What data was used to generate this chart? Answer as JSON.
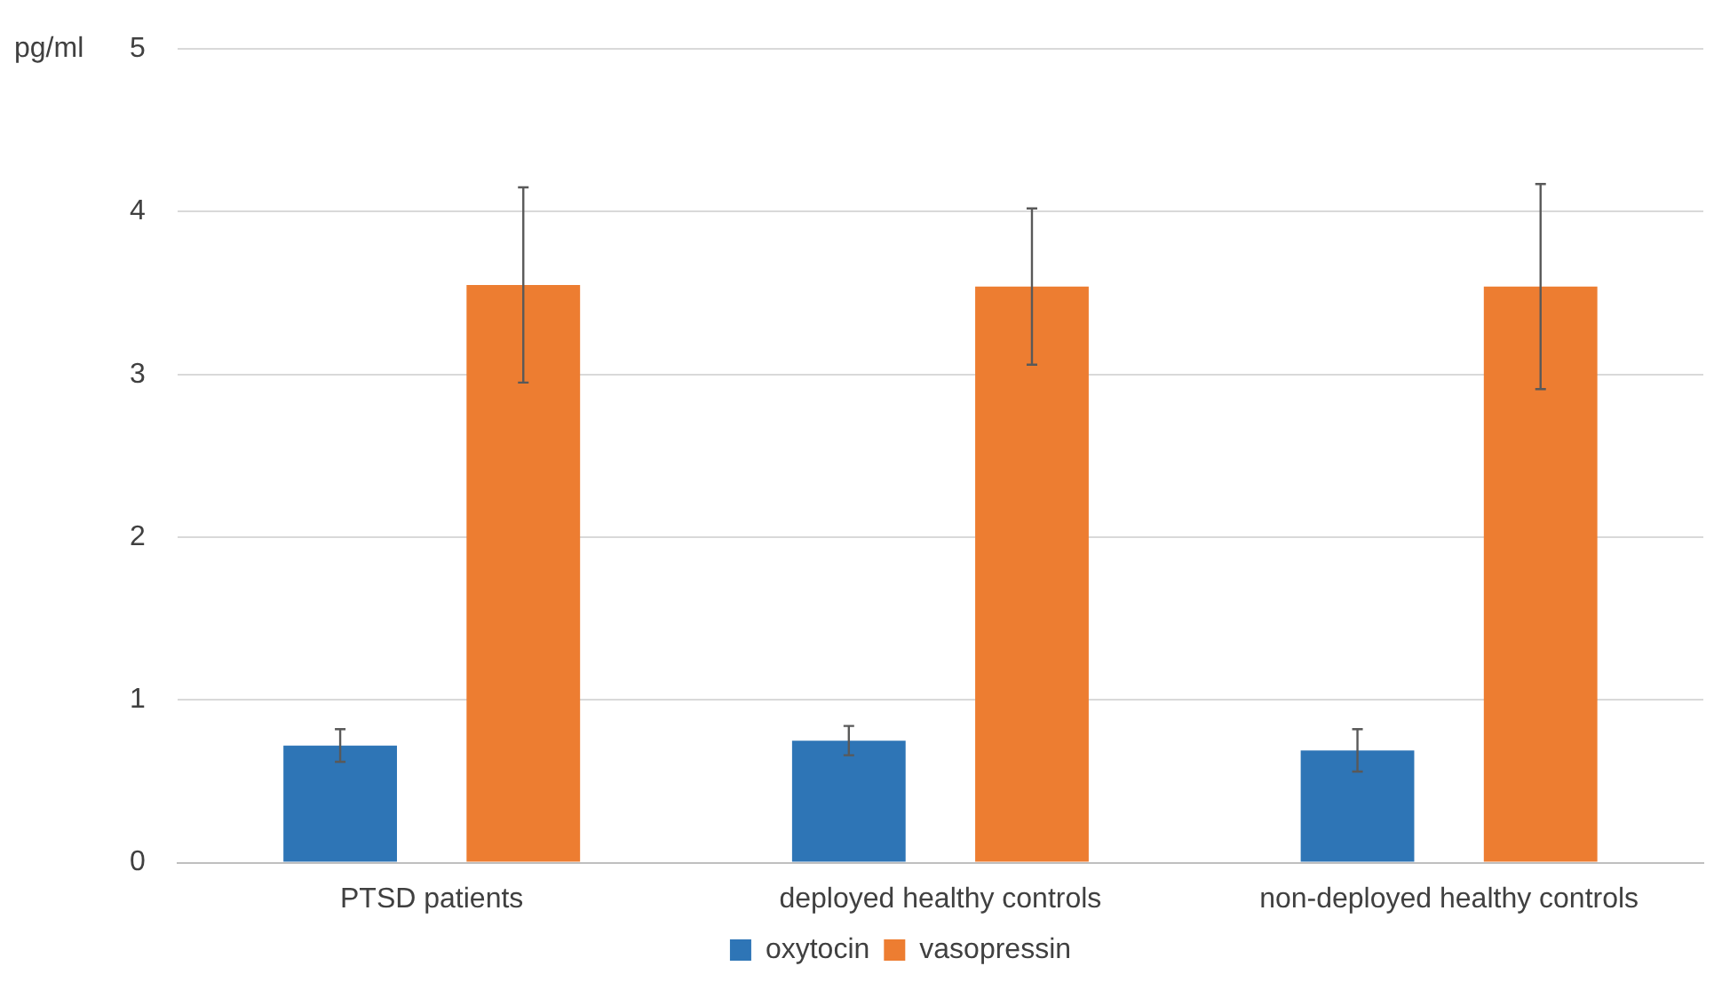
{
  "chart_data": {
    "type": "bar",
    "ylabel": "pg/ml",
    "categories": [
      "PTSD patients",
      "deployed healthy controls",
      "non-deployed healthy controls"
    ],
    "series": [
      {
        "name": "oxytocin",
        "color": "#2e75b6",
        "values": [
          0.72,
          0.75,
          0.69
        ],
        "errors": [
          0.1,
          0.09,
          0.13
        ]
      },
      {
        "name": "vasopressin",
        "color": "#ed7d31",
        "values": [
          3.55,
          3.54,
          3.54
        ],
        "errors": [
          0.6,
          0.48,
          0.63
        ]
      }
    ],
    "ylim": [
      0,
      5
    ],
    "yticks": [
      0,
      1,
      2,
      3,
      4,
      5
    ],
    "grid": "y",
    "legend": "bottom"
  }
}
